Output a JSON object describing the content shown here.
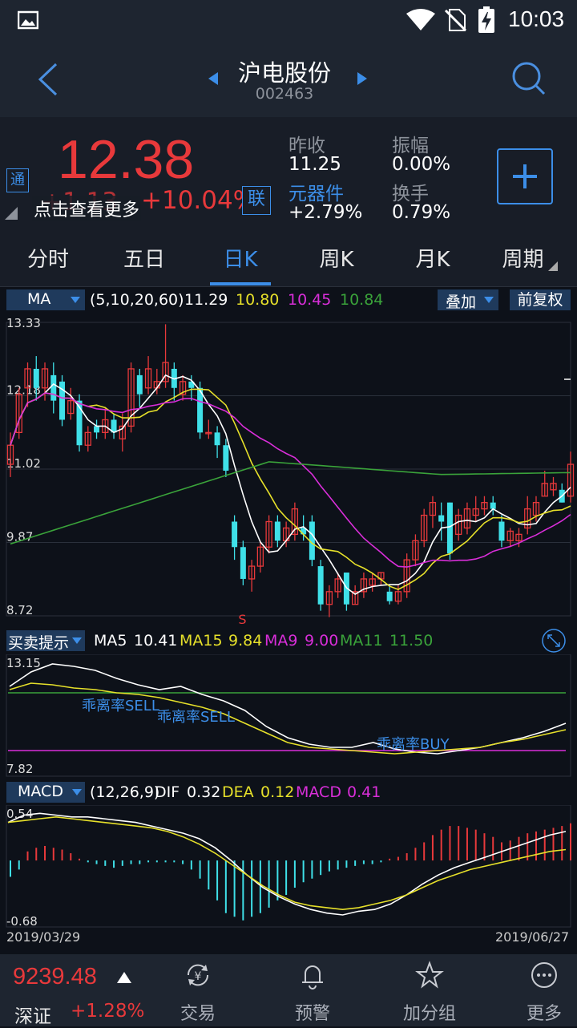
{
  "status": {
    "time": "10:03"
  },
  "header": {
    "title": "沪电股份",
    "code": "002463"
  },
  "quote": {
    "price": "12.38",
    "change": "+1.13",
    "change_pct": "+10.04%",
    "tong_badge": "通",
    "lian_badge": "联",
    "hint": "点击查看更多",
    "prev_close_label": "昨收",
    "prev_close": "11.25",
    "amplitude_label": "振幅",
    "amplitude": "0.00%",
    "sector_label": "元器件",
    "sector_change": "+2.79%",
    "turnover_label": "换手",
    "turnover": "0.79%"
  },
  "tabs": [
    "分时",
    "五日",
    "日K",
    "周K",
    "月K",
    "周期"
  ],
  "active_tab": 2,
  "ma_bar": {
    "selector": "MA",
    "params": "(5,10,20,60)",
    "v1": "11.29",
    "v2": "10.80",
    "v3": "10.45",
    "v4": "10.84",
    "overlay": "叠加",
    "adjust": "前复权"
  },
  "kline": {
    "y_labels": [
      "13.33",
      "12.18",
      "11.02",
      "9.87",
      "8.72"
    ],
    "sell_marker": "S"
  },
  "bs_bar": {
    "selector": "买卖提示",
    "items": [
      {
        "name": "MA5",
        "value": "10.41"
      },
      {
        "name": "MA15",
        "value": "9.84"
      },
      {
        "name": "MA9",
        "value": "9.00"
      },
      {
        "name": "MA11",
        "value": "11.50"
      }
    ]
  },
  "bs_panel": {
    "y_top": "13.15",
    "y_bottom": "7.82",
    "annotations": [
      "乖离率SELL",
      "乖离率SELL",
      "乖离率BUY"
    ]
  },
  "macd_bar": {
    "selector": "MACD",
    "params": "(12,26,9)",
    "dif_label": "DIF",
    "dif": "0.32",
    "dea_label": "DEA",
    "dea": "0.12",
    "macd_label": "MACD",
    "macd": "0.41"
  },
  "macd_panel": {
    "y_top": "0.54",
    "y_bottom": "-0.68"
  },
  "date_range": {
    "start": "2019/03/29",
    "end": "2019/06/27"
  },
  "bottom": {
    "index_value": "9239.48",
    "index_name": "深证",
    "index_change": "+1.28%",
    "nav": [
      "交易",
      "预警",
      "加分组",
      "更多"
    ]
  },
  "colors": {
    "up": "#e8393b",
    "down": "#3fe0e8",
    "ma5": "#ffffff",
    "ma10": "#e6e02a",
    "ma20": "#d92ed9",
    "ma60": "#3aa33a",
    "accent": "#3c8ee8"
  },
  "chart_data": [
    {
      "type": "candlestick",
      "y_range": [
        8.72,
        13.33
      ],
      "candles": [
        [
          11.1,
          11.4,
          11.6,
          10.9
        ],
        [
          11.6,
          12.2,
          12.3,
          11.5
        ],
        [
          12.3,
          12.6,
          12.7,
          12.0
        ],
        [
          12.6,
          12.3,
          12.8,
          12.1
        ],
        [
          12.3,
          12.6,
          12.7,
          12.1
        ],
        [
          12.5,
          12.1,
          12.7,
          11.9
        ],
        [
          12.4,
          11.8,
          12.5,
          11.7
        ],
        [
          11.9,
          12.1,
          12.3,
          11.8
        ],
        [
          12.1,
          11.4,
          12.2,
          11.3
        ],
        [
          11.4,
          11.6,
          11.7,
          11.3
        ],
        [
          11.7,
          11.6,
          11.8,
          11.5
        ],
        [
          11.6,
          11.8,
          12.0,
          11.5
        ],
        [
          11.8,
          11.6,
          11.9,
          11.5
        ],
        [
          11.5,
          11.7,
          11.9,
          11.3
        ],
        [
          11.7,
          12.6,
          12.7,
          11.6
        ],
        [
          12.5,
          12.2,
          12.6,
          12.0
        ],
        [
          12.3,
          12.6,
          12.8,
          12.2
        ],
        [
          12.3,
          12.4,
          12.6,
          12.2
        ],
        [
          12.4,
          12.7,
          13.3,
          12.3
        ],
        [
          12.6,
          12.3,
          12.7,
          12.1
        ],
        [
          12.2,
          12.4,
          12.5,
          12.1
        ],
        [
          12.4,
          12.3,
          12.5,
          12.1
        ],
        [
          12.3,
          11.6,
          12.4,
          11.5
        ],
        [
          11.6,
          11.6,
          11.8,
          11.5
        ],
        [
          11.6,
          11.4,
          11.7,
          11.2
        ],
        [
          11.4,
          11.0,
          11.5,
          10.9
        ],
        [
          10.2,
          9.8,
          10.3,
          9.6
        ],
        [
          9.8,
          9.3,
          9.9,
          9.2
        ],
        [
          9.3,
          9.5,
          9.6,
          9.1
        ],
        [
          9.5,
          9.8,
          9.9,
          9.4
        ],
        [
          9.8,
          10.2,
          10.3,
          9.7
        ],
        [
          10.2,
          9.9,
          10.3,
          9.8
        ],
        [
          9.9,
          10.1,
          10.2,
          9.8
        ],
        [
          10.0,
          10.4,
          10.5,
          9.9
        ],
        [
          10.1,
          10.0,
          10.3,
          9.9
        ],
        [
          10.2,
          9.6,
          10.3,
          9.5
        ],
        [
          9.5,
          8.9,
          9.6,
          8.8
        ],
        [
          8.9,
          9.1,
          9.2,
          8.7
        ],
        [
          9.1,
          9.3,
          9.4,
          9.0
        ],
        [
          9.4,
          8.9,
          9.4,
          8.8
        ],
        [
          8.9,
          9.1,
          9.2,
          8.9
        ],
        [
          9.1,
          9.3,
          9.4,
          9.0
        ],
        [
          9.2,
          9.3,
          9.4,
          9.1
        ],
        [
          9.3,
          9.4,
          9.4,
          9.2
        ],
        [
          9.1,
          8.95,
          9.2,
          8.9
        ],
        [
          8.95,
          9.1,
          9.2,
          8.9
        ],
        [
          9.1,
          9.6,
          9.7,
          9.0
        ],
        [
          9.6,
          9.9,
          10.0,
          9.5
        ],
        [
          9.9,
          10.3,
          10.4,
          9.8
        ],
        [
          10.3,
          10.5,
          10.6,
          10.1
        ],
        [
          10.3,
          10.2,
          10.5,
          9.9
        ],
        [
          10.5,
          9.7,
          10.5,
          9.6
        ],
        [
          10.0,
          10.3,
          10.4,
          9.9
        ],
        [
          10.1,
          10.4,
          10.5,
          10.0
        ],
        [
          10.3,
          10.4,
          10.6,
          10.2
        ],
        [
          10.4,
          10.5,
          10.6,
          10.3
        ],
        [
          10.5,
          10.4,
          10.6,
          10.3
        ],
        [
          10.2,
          9.9,
          10.3,
          9.8
        ],
        [
          9.9,
          10.05,
          10.1,
          9.8
        ],
        [
          9.9,
          10.0,
          10.1,
          9.8
        ],
        [
          10.1,
          10.4,
          10.6,
          10.0
        ],
        [
          10.3,
          10.5,
          10.6,
          10.2
        ],
        [
          10.6,
          10.8,
          11.0,
          10.6
        ],
        [
          10.7,
          10.8,
          10.9,
          10.6
        ],
        [
          10.7,
          10.5,
          10.8,
          10.5
        ],
        [
          10.6,
          11.1,
          11.3,
          10.5
        ]
      ]
    }
  ]
}
